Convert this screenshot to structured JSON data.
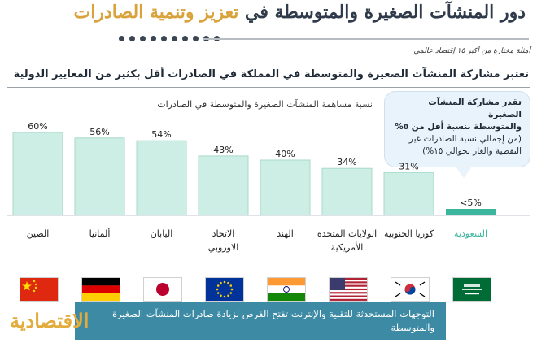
{
  "header": {
    "title_part1": "دور المنشآت الصغيرة والمتوسطة في",
    "title_part2": "تعزيز وتنمية الصادرات",
    "source": "أمثلة مختارة من أكبر ١٥ إقتصاد عالمي"
  },
  "headline": "تعتبر مشاركة المنشآت الصغيرة والمتوسطة في المملكة في الصادرات أقل بكثير من المعايير الدولية",
  "callout": {
    "line1": "تقدر مشاركة المنشآت الصغيرة",
    "line2": "والمتوسطة بنسبة أقل من ٥%",
    "line3": "(من إجمالي نسبة الصادرات غير",
    "line4": "النفطية والغاز بحوالي ١٥%)"
  },
  "banner": "التوجهات المستحدثة للتقنية والإنترنت تفتح الفرص لزيادة صادرات المنشآت الصغيرة والمتوسطة",
  "logo": "الاقتصادية",
  "colors": {
    "bar": "#cdeee4",
    "bar_border": "#a9d9c9",
    "bar_highlight": "#3bb59c",
    "label_highlight": "#3bb59c",
    "banner": "#3d8aa5",
    "title_dark": "#2f3b4a",
    "title_gold": "#d9a23a"
  },
  "chart_data": {
    "type": "bar",
    "title": "",
    "ylabel": "نسبة مساهمة المنشآت الصغيرة والمتوسطة في الصادرات",
    "xlabel": "",
    "ylim": [
      0,
      60
    ],
    "categories": [
      "الصين",
      "ألمانيا",
      "اليابان",
      "الاتحاد الاوروبي",
      "الهند",
      "الولايات المتحدة الأمريكية",
      "كوريا الجنوبية",
      "السعودية"
    ],
    "category_lines": [
      [
        "الصين"
      ],
      [
        "ألمانيا"
      ],
      [
        "اليابان"
      ],
      [
        "الاتحاد",
        "الاوروبي"
      ],
      [
        "الهند"
      ],
      [
        "الولايات المتحدة",
        "الأمريكية"
      ],
      [
        "كوريا الجنوبية"
      ],
      [
        "السعودية"
      ]
    ],
    "values": [
      60,
      56,
      54,
      43,
      40,
      34,
      31,
      5
    ],
    "value_labels": [
      "60%",
      "56%",
      "54%",
      "43%",
      "40%",
      "34%",
      "31%",
      "<5%"
    ],
    "highlight_index": 7,
    "flags": [
      "china-flag",
      "germany-flag",
      "japan-flag",
      "eu-flag",
      "india-flag",
      "usa-flag",
      "south-korea-flag",
      "saudi-flag"
    ]
  }
}
